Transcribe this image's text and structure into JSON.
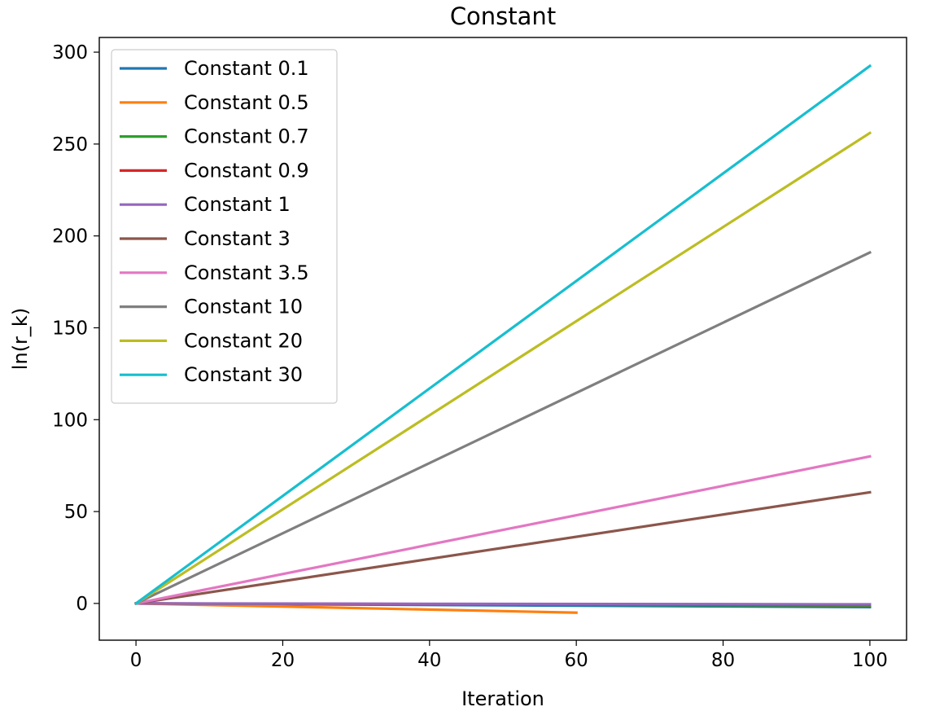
{
  "chart_data": {
    "type": "line",
    "title": "Constant",
    "xlabel": "Iteration",
    "ylabel": "ln(r_k)",
    "xlim": [
      -5,
      105
    ],
    "ylim": [
      -20,
      308
    ],
    "xticks": [
      0,
      20,
      40,
      60,
      80,
      100
    ],
    "yticks": [
      0,
      50,
      100,
      150,
      200,
      250,
      300
    ],
    "grid": false,
    "legend_position": "upper-left",
    "series": [
      {
        "name": "Constant 0.1",
        "color": "#1f77b4",
        "x": [
          0,
          100
        ],
        "y": [
          0,
          -2
        ]
      },
      {
        "name": "Constant 0.5",
        "color": "#ff7f0e",
        "x": [
          0,
          60
        ],
        "y": [
          0,
          -5
        ]
      },
      {
        "name": "Constant 0.7",
        "color": "#2ca02c",
        "x": [
          0,
          100
        ],
        "y": [
          0,
          -1.2
        ]
      },
      {
        "name": "Constant 0.9",
        "color": "#d62728",
        "x": [
          0,
          100
        ],
        "y": [
          0,
          -0.8
        ]
      },
      {
        "name": "Constant 1",
        "color": "#9467bd",
        "x": [
          0,
          100
        ],
        "y": [
          0,
          -0.5
        ]
      },
      {
        "name": "Constant 3",
        "color": "#8c564b",
        "x": [
          0,
          100
        ],
        "y": [
          0,
          60.5
        ]
      },
      {
        "name": "Constant 3.5",
        "color": "#e377c2",
        "x": [
          0,
          100
        ],
        "y": [
          0,
          80
        ]
      },
      {
        "name": "Constant 10",
        "color": "#7f7f7f",
        "x": [
          0,
          100
        ],
        "y": [
          0,
          191
        ]
      },
      {
        "name": "Constant 20",
        "color": "#bcbd22",
        "x": [
          0,
          100
        ],
        "y": [
          0,
          256
        ]
      },
      {
        "name": "Constant 30",
        "color": "#17becf",
        "x": [
          0,
          100
        ],
        "y": [
          0,
          292.5
        ]
      }
    ]
  }
}
